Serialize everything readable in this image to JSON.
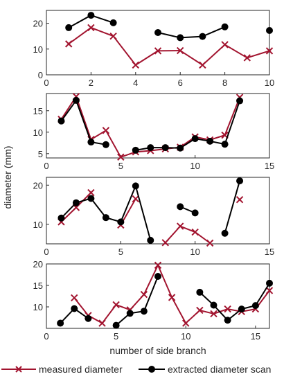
{
  "figure": {
    "ylabel": "diameter (mm)",
    "xlabel": "number of side branch"
  },
  "legend": {
    "items": [
      {
        "label": "measured diameter",
        "color": "#a2142f",
        "marker": "x"
      },
      {
        "label": "extracted diameter scan",
        "color": "#000000",
        "marker": "o"
      }
    ]
  },
  "chart_data": [
    {
      "type": "line",
      "xlim": [
        0,
        10
      ],
      "ylim": [
        0,
        25
      ],
      "xticks": [
        0,
        2,
        4,
        6,
        8,
        10
      ],
      "yticks": [
        0,
        10,
        20
      ],
      "series": [
        {
          "name": "measured diameter",
          "color": "#a2142f",
          "marker": "x",
          "x": [
            1,
            2,
            3,
            4,
            5,
            6,
            7,
            8,
            9,
            10
          ],
          "y": [
            12,
            18.3,
            15,
            3.8,
            9.3,
            9.4,
            3.8,
            11.7,
            6.6,
            9.3
          ]
        },
        {
          "name": "extracted diameter scan",
          "color": "#000000",
          "marker": "o",
          "x": [
            1,
            2,
            3,
            4,
            5,
            6,
            7,
            8,
            9,
            10
          ],
          "y": [
            18.3,
            23.1,
            20.2,
            null,
            16.4,
            14.4,
            14.9,
            18.6,
            null,
            17.2
          ]
        }
      ]
    },
    {
      "type": "line",
      "xlim": [
        0,
        15
      ],
      "ylim": [
        4,
        19
      ],
      "xticks": [
        0,
        5,
        10,
        15
      ],
      "yticks": [
        5,
        10,
        15
      ],
      "series": [
        {
          "name": "measured diameter",
          "color": "#a2142f",
          "marker": "x",
          "x": [
            1,
            2,
            3,
            4,
            5,
            6,
            7,
            8,
            9,
            10,
            11,
            12,
            13
          ],
          "y": [
            13,
            18.3,
            8.3,
            10.4,
            4.2,
            5.4,
            5.7,
            6.1,
            6.5,
            8.9,
            8.2,
            9.3,
            18.1
          ]
        },
        {
          "name": "extracted diameter scan",
          "color": "#000000",
          "marker": "o",
          "x": [
            1,
            2,
            3,
            4,
            5,
            6,
            7,
            8,
            9,
            10,
            11,
            12,
            13
          ],
          "y": [
            12.6,
            17.4,
            7.7,
            7.1,
            null,
            5.8,
            6.4,
            6.4,
            6.3,
            8.5,
            7.9,
            7.2,
            17.3
          ]
        }
      ]
    },
    {
      "type": "line",
      "xlim": [
        0,
        15
      ],
      "ylim": [
        5,
        22
      ],
      "xticks": [
        0,
        5,
        10,
        15
      ],
      "yticks": [
        10,
        20
      ],
      "series": [
        {
          "name": "measured diameter",
          "color": "#a2142f",
          "marker": "x",
          "x": [
            1,
            2,
            3,
            4,
            5,
            6,
            7,
            8,
            9,
            10,
            11,
            12,
            13
          ],
          "y": [
            10.6,
            14.3,
            18.1,
            null,
            9.8,
            16.5,
            null,
            5.3,
            9.5,
            8,
            5.2,
            null,
            16.3
          ]
        },
        {
          "name": "extracted diameter scan",
          "color": "#000000",
          "marker": "o",
          "x": [
            1,
            2,
            3,
            4,
            5,
            6,
            7,
            8,
            9,
            10,
            11,
            12,
            13
          ],
          "y": [
            11.6,
            15.5,
            16.6,
            11.7,
            10.6,
            19.8,
            5.9,
            null,
            14.5,
            12.9,
            null,
            7.7,
            21.1
          ]
        }
      ]
    },
    {
      "type": "line",
      "xlim": [
        0,
        16
      ],
      "ylim": [
        5,
        20
      ],
      "xticks": [
        0,
        5,
        10,
        15
      ],
      "yticks": [
        10,
        15,
        20
      ],
      "series": [
        {
          "name": "measured diameter",
          "color": "#a2142f",
          "marker": "x",
          "x": [
            1,
            2,
            3,
            4,
            5,
            6,
            7,
            8,
            9,
            10,
            11,
            12,
            13,
            14,
            15,
            16
          ],
          "y": [
            null,
            12.1,
            8,
            6.2,
            10.5,
            9.3,
            12.9,
            19.7,
            12.2,
            6.2,
            9.2,
            8.4,
            9.5,
            8.9,
            9.5,
            13.8
          ]
        },
        {
          "name": "extracted diameter scan",
          "color": "#000000",
          "marker": "o",
          "x": [
            1,
            2,
            3,
            4,
            5,
            6,
            7,
            8,
            9,
            10,
            11,
            12,
            13,
            14,
            15,
            16
          ],
          "y": [
            6.2,
            9.6,
            7.3,
            null,
            5.7,
            8.5,
            9,
            17.1,
            null,
            null,
            13.4,
            10.4,
            6.9,
            9.5,
            10.3,
            15.5
          ]
        }
      ]
    }
  ]
}
